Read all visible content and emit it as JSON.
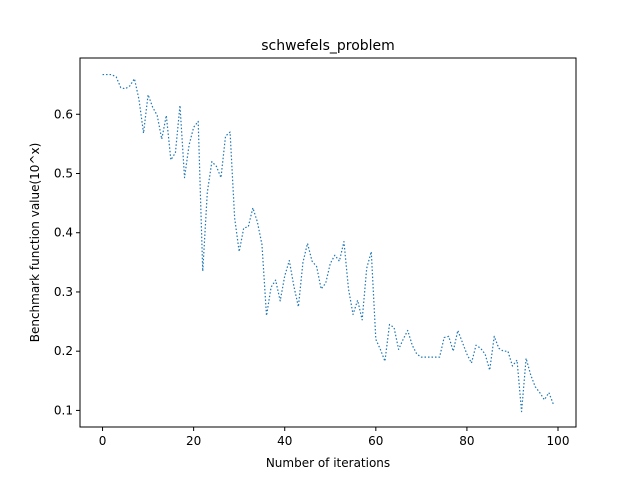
{
  "chart_data": {
    "type": "line",
    "title": "schwefels_problem",
    "xlabel": "Number of iterations",
    "ylabel": "Benchmark function value(10^x)",
    "xlim": [
      -4.95,
      103.95
    ],
    "ylim": [
      0.072,
      0.695
    ],
    "xticks": [
      0,
      20,
      40,
      60,
      80,
      100
    ],
    "yticks": [
      0.1,
      0.2,
      0.3,
      0.4,
      0.5,
      0.6
    ],
    "ytick_labels": [
      "0.1",
      "0.2",
      "0.3",
      "0.4",
      "0.5",
      "0.6"
    ],
    "grid": false,
    "line_style": "dotted",
    "series": [
      {
        "color": "#1f77b4",
        "x": [
          0,
          1,
          2,
          3,
          4,
          5,
          6,
          7,
          8,
          9,
          10,
          11,
          12,
          13,
          14,
          15,
          16,
          17,
          18,
          19,
          20,
          21,
          22,
          23,
          24,
          25,
          26,
          27,
          28,
          29,
          30,
          31,
          32,
          33,
          34,
          35,
          36,
          37,
          38,
          39,
          40,
          41,
          42,
          43,
          44,
          45,
          46,
          47,
          48,
          49,
          50,
          51,
          52,
          53,
          54,
          55,
          56,
          57,
          58,
          59,
          60,
          61,
          62,
          63,
          64,
          65,
          66,
          67,
          68,
          69,
          70,
          71,
          72,
          73,
          74,
          75,
          76,
          77,
          78,
          79,
          80,
          81,
          82,
          83,
          84,
          85,
          86,
          87,
          88,
          89,
          90,
          91,
          92,
          93,
          94,
          95,
          96,
          97,
          98,
          99
        ],
        "y": [
          0.667,
          0.667,
          0.667,
          0.663,
          0.645,
          0.643,
          0.648,
          0.66,
          0.625,
          0.568,
          0.633,
          0.612,
          0.598,
          0.558,
          0.598,
          0.523,
          0.535,
          0.615,
          0.493,
          0.548,
          0.578,
          0.588,
          0.335,
          0.468,
          0.52,
          0.512,
          0.493,
          0.563,
          0.57,
          0.425,
          0.368,
          0.408,
          0.41,
          0.442,
          0.418,
          0.38,
          0.26,
          0.308,
          0.32,
          0.285,
          0.327,
          0.353,
          0.31,
          0.275,
          0.35,
          0.382,
          0.352,
          0.343,
          0.305,
          0.315,
          0.348,
          0.362,
          0.352,
          0.385,
          0.305,
          0.262,
          0.286,
          0.253,
          0.34,
          0.368,
          0.22,
          0.203,
          0.183,
          0.245,
          0.24,
          0.203,
          0.22,
          0.235,
          0.21,
          0.195,
          0.19,
          0.19,
          0.19,
          0.19,
          0.19,
          0.223,
          0.225,
          0.2,
          0.235,
          0.215,
          0.195,
          0.18,
          0.21,
          0.205,
          0.195,
          0.168,
          0.225,
          0.205,
          0.2,
          0.2,
          0.175,
          0.185,
          0.098,
          0.188,
          0.16,
          0.14,
          0.13,
          0.118,
          0.13,
          0.11
        ]
      }
    ]
  }
}
